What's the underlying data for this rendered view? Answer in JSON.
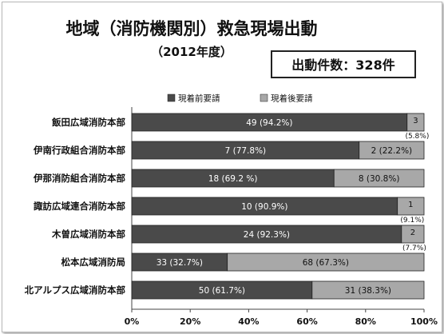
{
  "chart_data": {
    "type": "bar",
    "stacked": true,
    "orientation": "horizontal",
    "percent_stacked": true,
    "title": "地域（消防機関別）救急現場出動",
    "subtitle": "（2012年度）",
    "total_label": "出動件数：328件",
    "categories": [
      "飯田広域消防本部",
      "伊南行政組合消防本部",
      "伊那消防組合消防本部",
      "諏訪広域連合消防本部",
      "木曽広域消防本部",
      "松本広域消防局",
      "北アルプス広域消防本部"
    ],
    "series": [
      {
        "name": "現着前要請",
        "color": "#4a4a4a",
        "values": [
          49,
          7,
          18,
          10,
          24,
          33,
          50
        ],
        "percents": [
          94.2,
          77.8,
          69.2,
          90.9,
          92.3,
          32.7,
          61.7
        ],
        "labels": [
          "49 (94.2%)",
          "7 (77.8%)",
          "18 (69.2 %)",
          "10 (90.9%)",
          "24 (92.3%)",
          "33 (32.7%)",
          "50 (61.7%)"
        ]
      },
      {
        "name": "現着後要請",
        "color": "#a8a8a8",
        "values": [
          3,
          2,
          8,
          1,
          2,
          68,
          31
        ],
        "percents": [
          5.8,
          22.2,
          30.8,
          9.1,
          7.7,
          67.3,
          38.3
        ],
        "labels": [
          "3",
          "2 (22.2%)",
          "8 (30.8%)",
          "1",
          "2",
          "68 (67.3%)",
          "31 (38.3%)"
        ],
        "sublabels": [
          "(5.8%)",
          "",
          "",
          "(9.1%)",
          "(7.7%)",
          "",
          ""
        ]
      }
    ],
    "x_ticks": [
      "0%",
      "20%",
      "40%",
      "60%",
      "80%",
      "100%"
    ],
    "xlim": [
      0,
      100
    ],
    "legend_position": "top",
    "grid": false
  }
}
